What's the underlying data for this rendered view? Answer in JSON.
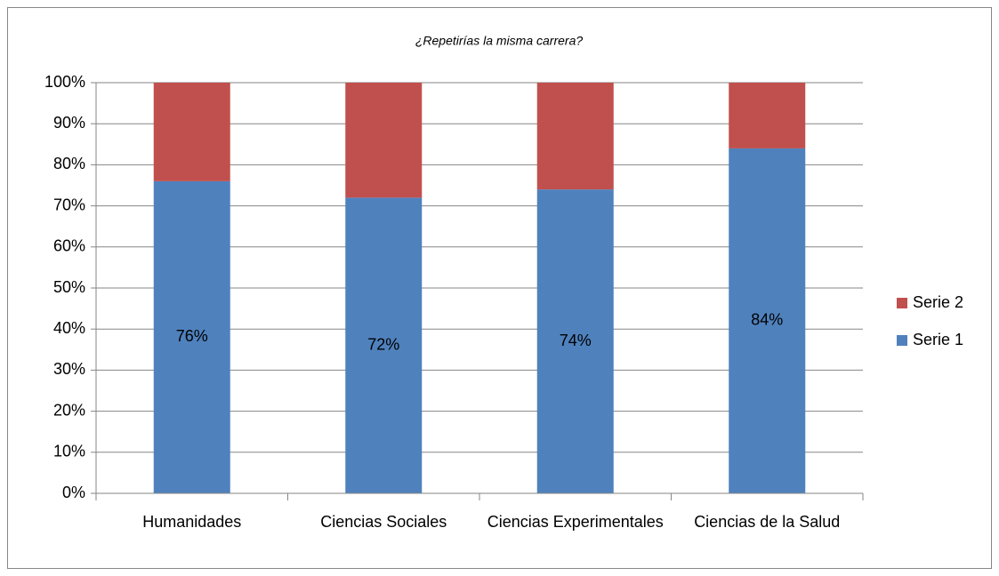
{
  "chart_data": {
    "type": "stacked_bar",
    "title": "¿Repetirías la misma carrera?",
    "categories": [
      "Humanidades",
      "Ciencias Sociales",
      "Ciencias Experimentales",
      "Ciencias de la Salud"
    ],
    "series": [
      {
        "name": "Serie 1",
        "color": "#4f81bd",
        "values": [
          76,
          72,
          74,
          84
        ],
        "value_labels": [
          "76%",
          "72%",
          "74%",
          "84%"
        ]
      },
      {
        "name": "Serie 2",
        "color": "#c0504d",
        "values": [
          24,
          28,
          26,
          16
        ]
      }
    ],
    "ylim": [
      0,
      100
    ],
    "yticks": [
      {
        "value": 0,
        "label": "0%"
      },
      {
        "value": 10,
        "label": "10%"
      },
      {
        "value": 20,
        "label": "20%"
      },
      {
        "value": 30,
        "label": "30%"
      },
      {
        "value": 40,
        "label": "40%"
      },
      {
        "value": 50,
        "label": "50%"
      },
      {
        "value": 60,
        "label": "60%"
      },
      {
        "value": 70,
        "label": "70%"
      },
      {
        "value": 80,
        "label": "80%"
      },
      {
        "value": 90,
        "label": "90%"
      },
      {
        "value": 100,
        "label": "100%"
      }
    ],
    "grid": true,
    "legend": "right"
  }
}
